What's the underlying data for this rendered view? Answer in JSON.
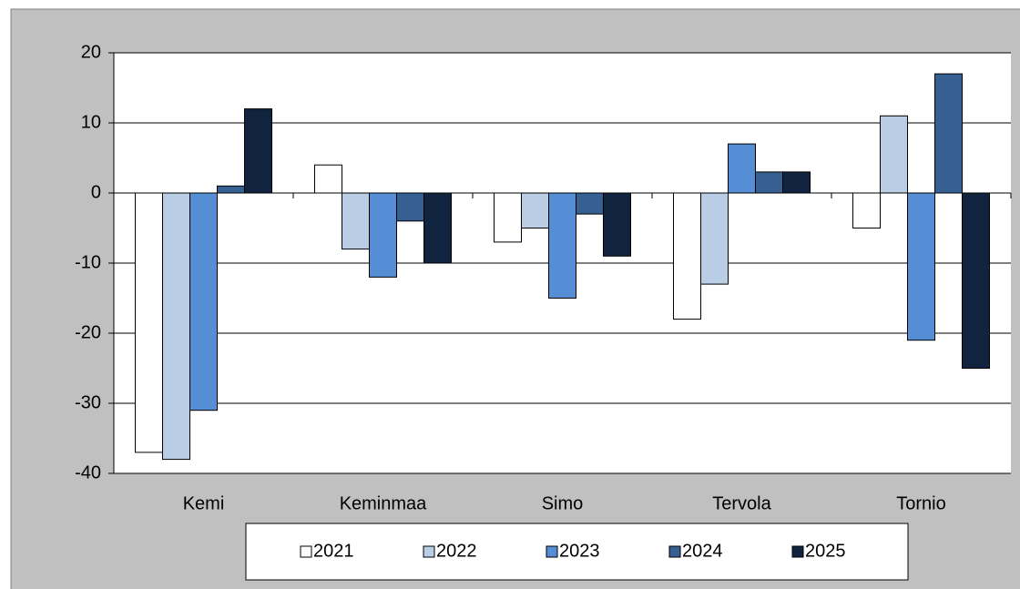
{
  "chart_data": {
    "type": "bar",
    "categories": [
      "Kemi",
      "Keminmaa",
      "Simo",
      "Tervola",
      "Tornio"
    ],
    "series": [
      {
        "name": "2021",
        "color": "#ffffff",
        "values": [
          -37,
          4,
          -7,
          -18,
          -5
        ]
      },
      {
        "name": "2022",
        "color": "#b9cde5",
        "values": [
          -38,
          -8,
          -5,
          -13,
          11
        ]
      },
      {
        "name": "2023",
        "color": "#558ed5",
        "values": [
          -31,
          -12,
          -15,
          7,
          -21
        ]
      },
      {
        "name": "2024",
        "color": "#376092",
        "values": [
          1,
          -4,
          -3,
          3,
          17
        ]
      },
      {
        "name": "2025",
        "color": "#10243f",
        "values": [
          12,
          -10,
          -9,
          3,
          -25
        ]
      }
    ],
    "ylim": [
      -40,
      20
    ],
    "yticks": [
      -40,
      -30,
      -20,
      -10,
      0,
      10,
      20
    ],
    "grid": true,
    "legend": "bottom"
  }
}
